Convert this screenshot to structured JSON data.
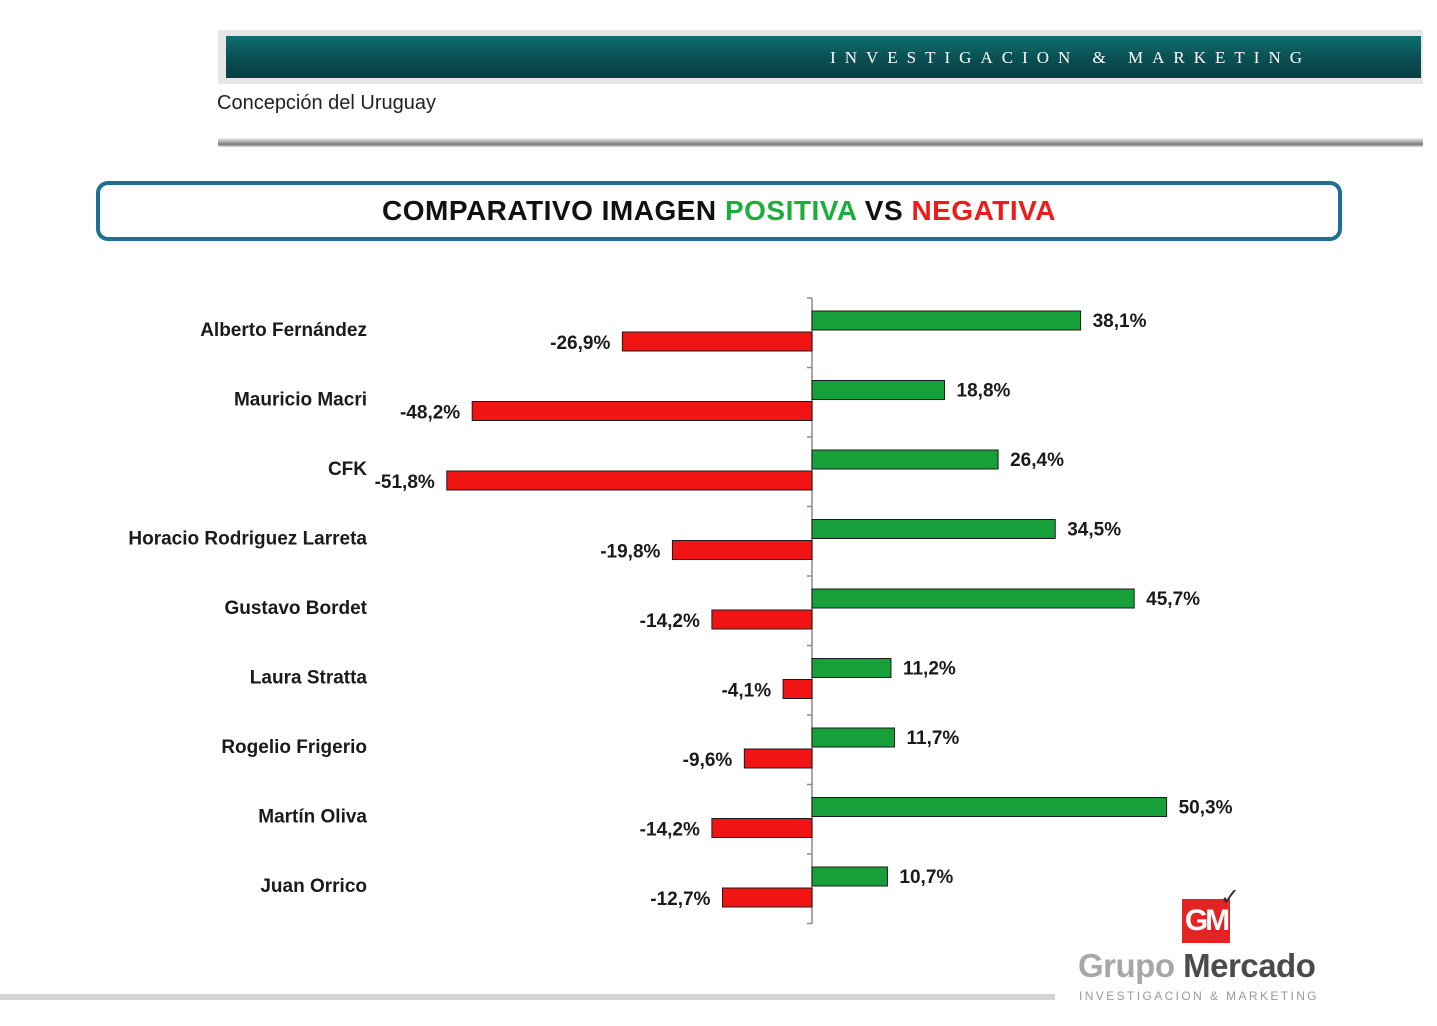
{
  "header": {
    "banner_text": "INVESTIGACION & MARKETING",
    "subtitle": "Concepción del Uruguay"
  },
  "title": {
    "part1": "COMPARATIVO IMAGEN ",
    "positive_word": "POSITIVA",
    "part2": " VS ",
    "negative_word": "NEGATIVA"
  },
  "colors": {
    "positive": "#17a03a",
    "negative": "#f01414",
    "banner": "#0a5557",
    "title_border": "#1d6f93"
  },
  "chart_data": {
    "type": "bar",
    "orientation": "horizontal",
    "title": "COMPARATIVO IMAGEN POSITIVA VS NEGATIVA",
    "categories": [
      "Alberto Fernández",
      "Mauricio Macri",
      "CFK",
      "Horacio Rodriguez Larreta",
      "Gustavo Bordet",
      "Laura Stratta",
      "Rogelio Frigerio",
      "Martín Oliva",
      "Juan Orrico"
    ],
    "series": [
      {
        "name": "Positiva",
        "values": [
          38.1,
          18.8,
          26.4,
          34.5,
          45.7,
          11.2,
          11.7,
          50.3,
          10.7
        ],
        "labels": [
          "38,1%",
          "18,8%",
          "26,4%",
          "34,5%",
          "45,7%",
          "11,2%",
          "11,7%",
          "50,3%",
          "10,7%"
        ]
      },
      {
        "name": "Negativa",
        "values": [
          -26.9,
          -48.2,
          -51.8,
          -19.8,
          -14.2,
          -4.1,
          -9.6,
          -14.2,
          -12.7
        ],
        "labels": [
          "-26,9%",
          "-48,2%",
          "-51,8%",
          "-19,8%",
          "-14,2%",
          "-4,1%",
          "-9,6%",
          "-14,2%",
          "-12,7%"
        ]
      }
    ],
    "xlim": [
      -55,
      55
    ],
    "grid": false,
    "legend": "none"
  },
  "logo": {
    "mark": "GM",
    "name_part1": "Grupo",
    "name_part2": "Mercado",
    "tagline": "INVESTIGACION & MARKETING"
  }
}
